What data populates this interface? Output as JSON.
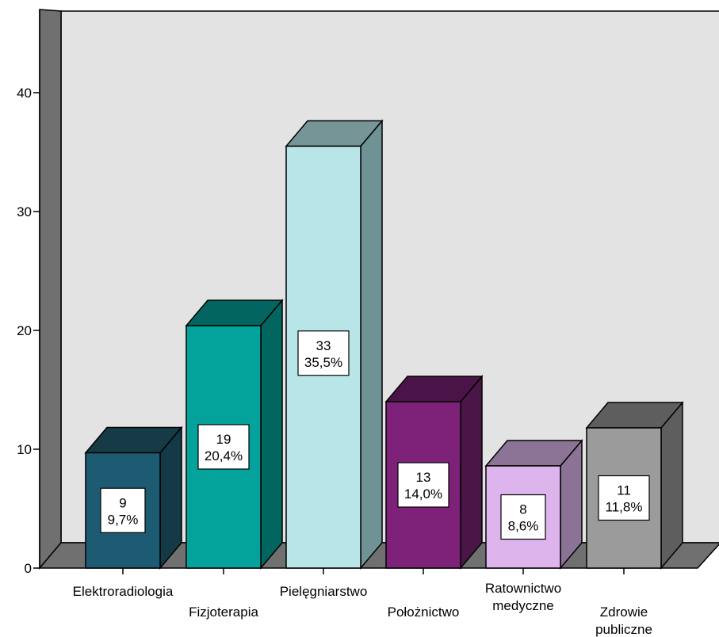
{
  "chart_data": {
    "type": "bar",
    "categories": [
      [
        "Elektroradiologia"
      ],
      [
        "Fizjoterapia"
      ],
      [
        "Pielęgniarstwo"
      ],
      [
        "Położnictwo"
      ],
      [
        "Ratownictwo",
        "medyczne"
      ],
      [
        "Zdrowie",
        "publiczne"
      ]
    ],
    "values": [
      9.7,
      20.4,
      35.5,
      14.0,
      8.6,
      11.8
    ],
    "data_labels": [
      [
        "9",
        "9,7%"
      ],
      [
        "19",
        "20,4%"
      ],
      [
        "33",
        "35,5%"
      ],
      [
        "13",
        "14,0%"
      ],
      [
        "8",
        "8,6%"
      ],
      [
        "11",
        "11,8%"
      ]
    ],
    "colors": [
      {
        "front": "#1d5b73",
        "top": "#163b47",
        "side": "#133a46"
      },
      {
        "front": "#03a39b",
        "top": "#036560",
        "side": "#026660"
      },
      {
        "front": "#b8e6e8",
        "top": "#769596",
        "side": "#6f9394"
      },
      {
        "front": "#7d2278",
        "top": "#4b1448",
        "side": "#4a1648"
      },
      {
        "front": "#ddb5ec",
        "top": "#8c7496",
        "side": "#8a7394"
      },
      {
        "front": "#9b9b9b",
        "top": "#5e5e5e",
        "side": "#5e5e5e"
      }
    ],
    "yticks": [
      0,
      10,
      20,
      30,
      40
    ],
    "ylim": [
      0,
      47
    ],
    "xlabel": "",
    "ylabel": "",
    "title": "",
    "grid": false,
    "legend": "none",
    "background": "#e3e3e3"
  }
}
